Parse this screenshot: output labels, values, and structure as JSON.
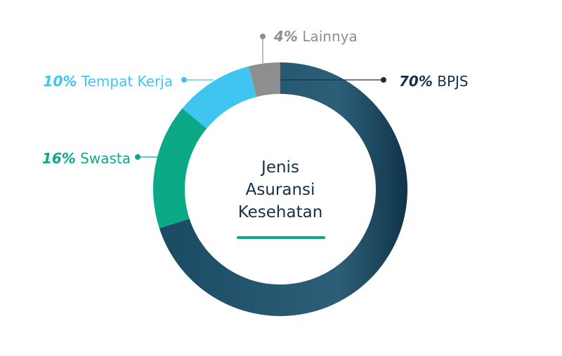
{
  "chart_data": {
    "type": "pie",
    "variant": "donut",
    "title": [
      "Jenis",
      "Asuransi",
      "Kesehatan"
    ],
    "title_underline_color": "#0ca986",
    "slices": [
      {
        "label": "BPJS",
        "value": 70,
        "pct_text": "70%",
        "color": "#1e4d66",
        "label_color": "#14314a",
        "label_side": "right"
      },
      {
        "label": "Swasta",
        "value": 16,
        "pct_text": "16%",
        "color": "#0ca986",
        "label_color": "#0ca986",
        "label_side": "left"
      },
      {
        "label": "Tempat Kerja",
        "value": 10,
        "pct_text": "10%",
        "color": "#3fc5f0",
        "label_color": "#3fc5f0",
        "label_side": "left"
      },
      {
        "label": "Lainnya",
        "value": 4,
        "pct_text": "4%",
        "color": "#8e8e8e",
        "label_color": "#8e8e8e",
        "label_side": "top"
      }
    ]
  }
}
